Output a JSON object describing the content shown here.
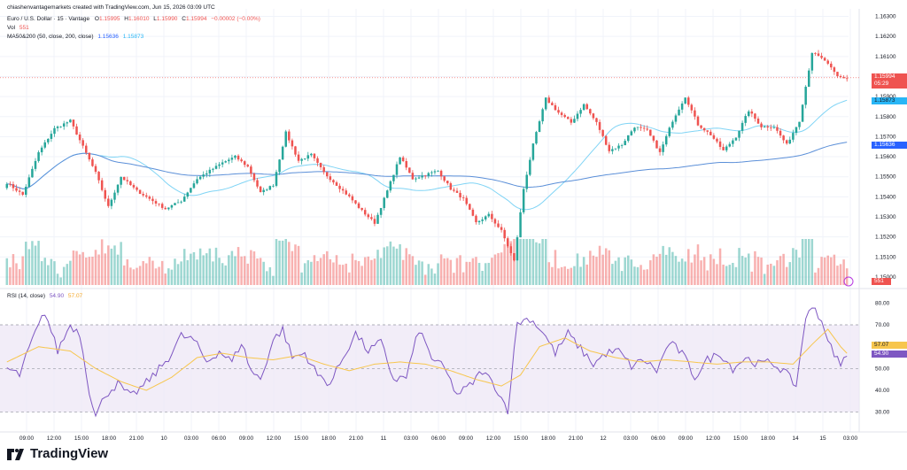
{
  "header": {
    "credit": "chiashenvantagemarkets created with TradingView.com, Jun 15, 2026 03:09 UTC",
    "symbol": "Euro / U.S. Dollar · 15 · Vantage",
    "ohlc": {
      "o_label": "O",
      "o": "1.15995",
      "h_label": "H",
      "h": "1.16010",
      "l_label": "L",
      "l": "1.15990",
      "c_label": "C",
      "c": "1.15994",
      "chg": "−0.00002 (−0.00%)"
    },
    "vol_label": "Vol",
    "vol": "551",
    "ma_label": "MA50&200 (50, close, 200, close)",
    "ma50": "1.15636",
    "ma200": "1.15873",
    "rsi_label": "RSI (14, close)",
    "rsi": "54.90",
    "rsi_ma": "57.07"
  },
  "tags": {
    "last_price": "1.15994",
    "countdown": "05:29",
    "ma_fast_value": "1.15873",
    "ma_slow_value": "1.15636",
    "vol_value": "551",
    "rsi_ma_value": "57.07",
    "rsi_value": "54.90"
  },
  "footer": {
    "brand": "TradingView"
  },
  "colors": {
    "up": "#26a69a",
    "down": "#ef5350",
    "ma_fast": "#80d4f5",
    "ma_slow": "#5b8fd8",
    "rsi": "#7e57c2",
    "rsi_ma": "#f7c64d",
    "rsi_band": "#ede7f6",
    "grid": "#f0f3fa"
  },
  "chart_data": {
    "type": "candlestick",
    "price_axis": {
      "ticks": [
        1.163,
        1.162,
        1.161,
        1.16,
        1.159,
        1.158,
        1.157,
        1.156,
        1.155,
        1.154,
        1.153,
        1.152,
        1.151,
        1.15
      ],
      "range": [
        1.1496,
        1.1632
      ]
    },
    "time_axis": {
      "ticks": [
        "09:00",
        "12:00",
        "15:00",
        "18:00",
        "21:00",
        "10",
        "03:00",
        "06:00",
        "09:00",
        "12:00",
        "15:00",
        "18:00",
        "21:00",
        "11",
        "03:00",
        "06:00",
        "09:00",
        "12:00",
        "15:00",
        "18:00",
        "21:00",
        "12",
        "03:00",
        "06:00",
        "09:00",
        "12:00",
        "15:00",
        "18:00",
        "14",
        "15",
        "03:00"
      ]
    },
    "close_path": [
      [
        0,
        1.1547
      ],
      [
        5,
        1.1541
      ],
      [
        10,
        1.1562
      ],
      [
        15,
        1.1574
      ],
      [
        20,
        1.1578
      ],
      [
        24,
        1.1565
      ],
      [
        28,
        1.1552
      ],
      [
        32,
        1.1535
      ],
      [
        36,
        1.155
      ],
      [
        41,
        1.1543
      ],
      [
        45,
        1.1539
      ],
      [
        50,
        1.1534
      ],
      [
        55,
        1.1538
      ],
      [
        60,
        1.1549
      ],
      [
        64,
        1.1553
      ],
      [
        68,
        1.1557
      ],
      [
        72,
        1.156
      ],
      [
        76,
        1.1555
      ],
      [
        80,
        1.1542
      ],
      [
        84,
        1.1546
      ],
      [
        88,
        1.1572
      ],
      [
        92,
        1.1558
      ],
      [
        96,
        1.1561
      ],
      [
        100,
        1.1552
      ],
      [
        104,
        1.1546
      ],
      [
        108,
        1.154
      ],
      [
        112,
        1.1533
      ],
      [
        116,
        1.1527
      ],
      [
        120,
        1.1543
      ],
      [
        124,
        1.156
      ],
      [
        128,
        1.1549
      ],
      [
        132,
        1.1551
      ],
      [
        136,
        1.1553
      ],
      [
        140,
        1.1544
      ],
      [
        144,
        1.1539
      ],
      [
        148,
        1.1527
      ],
      [
        152,
        1.1531
      ],
      [
        156,
        1.1523
      ],
      [
        160,
        1.1508
      ],
      [
        163,
        1.1544
      ],
      [
        166,
        1.1566
      ],
      [
        170,
        1.1589
      ],
      [
        174,
        1.1582
      ],
      [
        178,
        1.1577
      ],
      [
        182,
        1.1586
      ],
      [
        186,
        1.1577
      ],
      [
        190,
        1.1563
      ],
      [
        194,
        1.1566
      ],
      [
        198,
        1.1575
      ],
      [
        202,
        1.1573
      ],
      [
        206,
        1.1562
      ],
      [
        210,
        1.1578
      ],
      [
        214,
        1.159
      ],
      [
        218,
        1.1576
      ],
      [
        222,
        1.1571
      ],
      [
        226,
        1.1563
      ],
      [
        230,
        1.157
      ],
      [
        234,
        1.1583
      ],
      [
        238,
        1.1575
      ],
      [
        242,
        1.1575
      ],
      [
        246,
        1.1566
      ],
      [
        250,
        1.1578
      ],
      [
        254,
        1.1612
      ],
      [
        258,
        1.1608
      ],
      [
        262,
        1.16
      ],
      [
        265,
        1.1599
      ]
    ],
    "rsi_axis": {
      "ticks": [
        80.0,
        70.0,
        60.0,
        50.0,
        40.0,
        30.0
      ],
      "range": [
        25,
        85
      ],
      "upper_band": 70,
      "mid_band": 50,
      "lower_band": 30
    },
    "rsi_path": [
      [
        0,
        50
      ],
      [
        4,
        47
      ],
      [
        8,
        63
      ],
      [
        12,
        76
      ],
      [
        16,
        58
      ],
      [
        20,
        70
      ],
      [
        23,
        66
      ],
      [
        26,
        40
      ],
      [
        28,
        28
      ],
      [
        31,
        38
      ],
      [
        35,
        43
      ],
      [
        39,
        37
      ],
      [
        43,
        42
      ],
      [
        47,
        48
      ],
      [
        51,
        55
      ],
      [
        55,
        65
      ],
      [
        59,
        63
      ],
      [
        63,
        53
      ],
      [
        67,
        58
      ],
      [
        71,
        53
      ],
      [
        74,
        62
      ],
      [
        77,
        49
      ],
      [
        80,
        45
      ],
      [
        84,
        63
      ],
      [
        87,
        68
      ],
      [
        90,
        55
      ],
      [
        94,
        57
      ],
      [
        98,
        47
      ],
      [
        102,
        43
      ],
      [
        106,
        55
      ],
      [
        110,
        66
      ],
      [
        114,
        58
      ],
      [
        118,
        62
      ],
      [
        122,
        45
      ],
      [
        126,
        46
      ],
      [
        130,
        68
      ],
      [
        134,
        55
      ],
      [
        138,
        50
      ],
      [
        142,
        38
      ],
      [
        146,
        42
      ],
      [
        150,
        49
      ],
      [
        154,
        42
      ],
      [
        158,
        31
      ],
      [
        161,
        71
      ],
      [
        165,
        73
      ],
      [
        169,
        67
      ],
      [
        173,
        57
      ],
      [
        177,
        66
      ],
      [
        181,
        59
      ],
      [
        185,
        52
      ],
      [
        189,
        57
      ],
      [
        193,
        58
      ],
      [
        197,
        51
      ],
      [
        201,
        54
      ],
      [
        205,
        49
      ],
      [
        209,
        62
      ],
      [
        213,
        57
      ],
      [
        217,
        46
      ],
      [
        221,
        54
      ],
      [
        225,
        57
      ],
      [
        229,
        50
      ],
      [
        233,
        55
      ],
      [
        237,
        52
      ],
      [
        241,
        53
      ],
      [
        245,
        49
      ],
      [
        249,
        42
      ],
      [
        252,
        74
      ],
      [
        255,
        78
      ],
      [
        258,
        68
      ],
      [
        261,
        55
      ],
      [
        263,
        53
      ],
      [
        265,
        55
      ]
    ],
    "rsi_ma_path": [
      [
        0,
        53
      ],
      [
        10,
        60
      ],
      [
        20,
        58
      ],
      [
        28,
        50
      ],
      [
        36,
        44
      ],
      [
        44,
        40
      ],
      [
        52,
        46
      ],
      [
        60,
        55
      ],
      [
        68,
        57
      ],
      [
        76,
        55
      ],
      [
        84,
        54
      ],
      [
        92,
        56
      ],
      [
        100,
        52
      ],
      [
        108,
        49
      ],
      [
        116,
        52
      ],
      [
        124,
        53
      ],
      [
        132,
        52
      ],
      [
        140,
        49
      ],
      [
        148,
        45
      ],
      [
        156,
        42
      ],
      [
        162,
        47
      ],
      [
        168,
        60
      ],
      [
        176,
        64
      ],
      [
        184,
        58
      ],
      [
        192,
        55
      ],
      [
        200,
        53
      ],
      [
        208,
        54
      ],
      [
        216,
        53
      ],
      [
        224,
        52
      ],
      [
        232,
        53
      ],
      [
        240,
        53
      ],
      [
        248,
        52
      ],
      [
        254,
        61
      ],
      [
        259,
        68
      ],
      [
        263,
        60
      ],
      [
        265,
        57
      ]
    ]
  }
}
